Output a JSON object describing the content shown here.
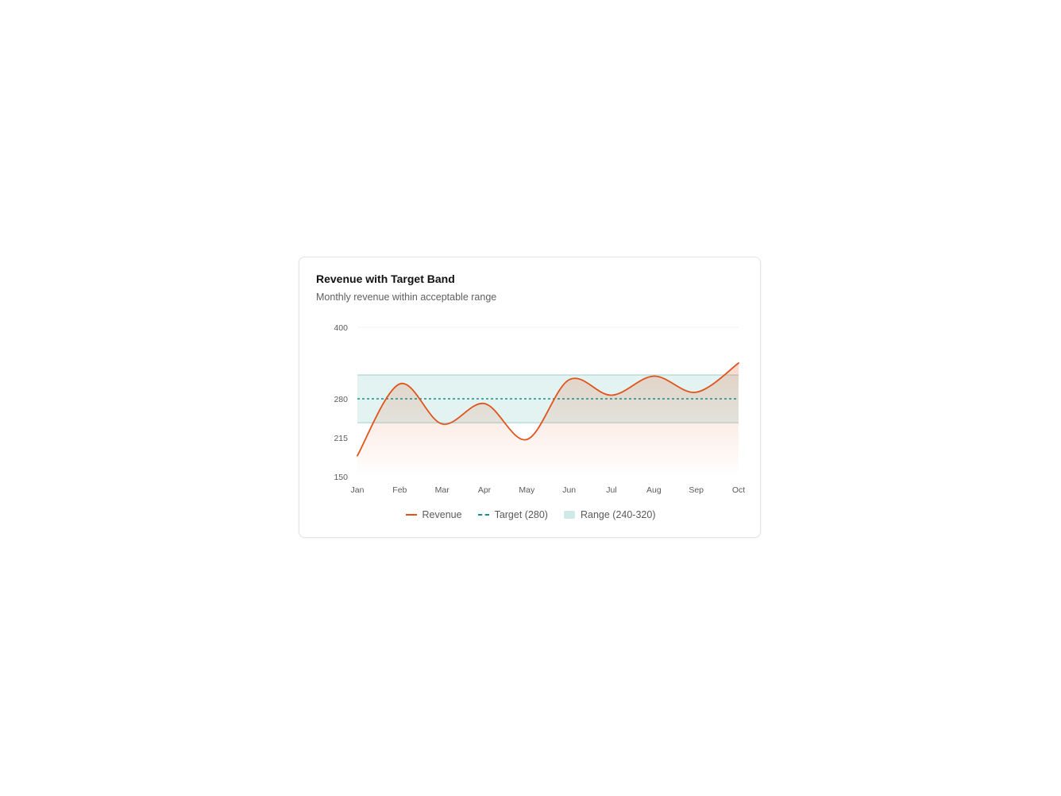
{
  "title": "Revenue with Target Band",
  "subtitle": "Monthly revenue within acceptable range",
  "colors": {
    "revenue": "#e0531a",
    "target": "#14908a",
    "band_fill": "#d6eeec",
    "band_stroke": "#9fcfcb"
  },
  "legend": {
    "revenue": "Revenue",
    "target": "Target (280)",
    "range": "Range (240-320)"
  },
  "chart_data": {
    "type": "line",
    "title": "Revenue with Target Band",
    "subtitle": "Monthly revenue within acceptable range",
    "categories": [
      "Jan",
      "Feb",
      "Mar",
      "Apr",
      "May",
      "Jun",
      "Jul",
      "Aug",
      "Sep",
      "Oct"
    ],
    "series": [
      {
        "name": "Revenue",
        "values": [
          185,
          305,
          238,
          272,
          212,
          312,
          286,
          318,
          291,
          340
        ]
      }
    ],
    "target": 280,
    "band": [
      240,
      320
    ],
    "ylim": [
      150,
      400
    ],
    "yticks": [
      150,
      215,
      280,
      400
    ],
    "grid": false,
    "legend_position": "bottom"
  }
}
